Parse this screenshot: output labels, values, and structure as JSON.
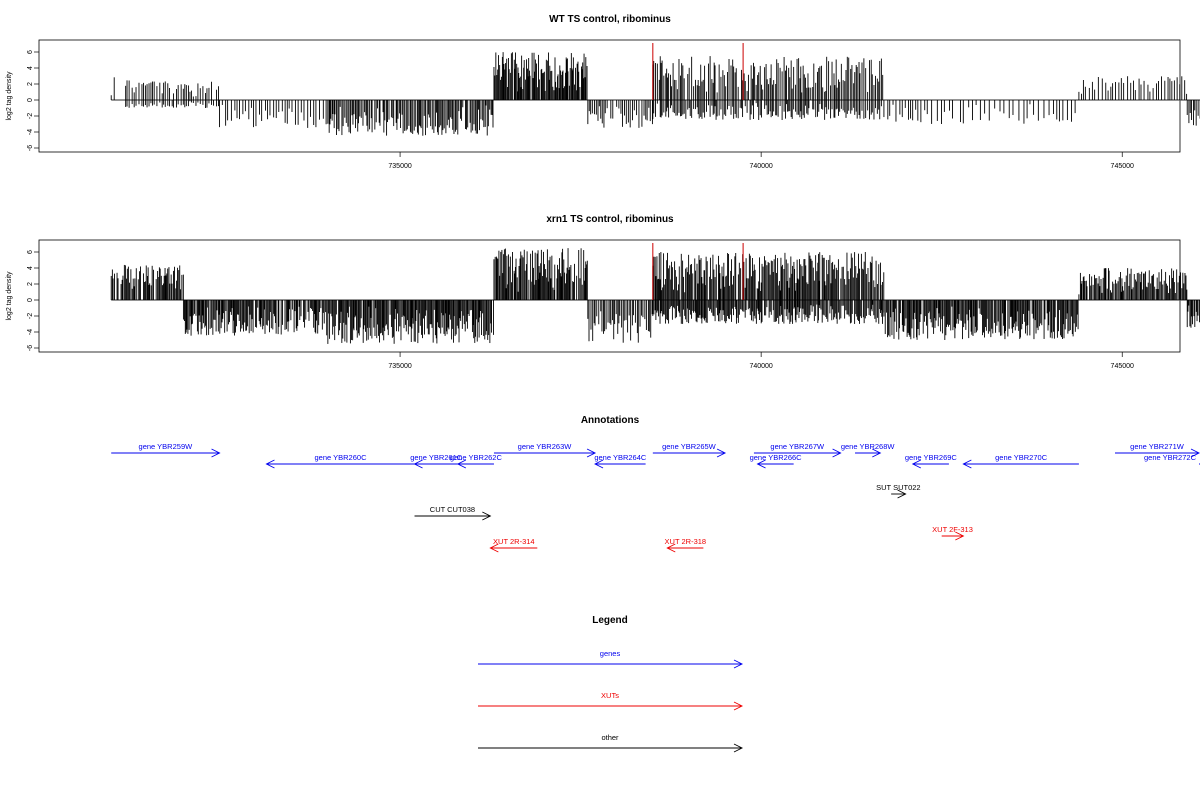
{
  "chart_data": [
    {
      "type": "bar",
      "title": "WT TS control, ribominus",
      "ylabel": "log2 tag density",
      "xlabel": "",
      "xlim": [
        730000,
        745800
      ],
      "ylim": [
        -6,
        7
      ],
      "yticks": [
        6,
        4,
        2,
        0,
        -2,
        -4,
        -6
      ],
      "xticks": [
        735000,
        740000,
        745000
      ],
      "xtick_labels": [
        "735000",
        "740000",
        "745000"
      ],
      "track_x": [
        731000,
        746500
      ],
      "colors": {
        "bars": "#000000",
        "markers": "#cc0000",
        "baseline": "#555555"
      },
      "markers_x": [
        738500,
        739750
      ],
      "segments": [
        {
          "x": [
            731000,
            731050
          ],
          "y": [
            3,
            3
          ],
          "density": 0.3
        },
        {
          "x": [
            731200,
            732500
          ],
          "y": [
            2.5,
            -1
          ],
          "density": 0.4
        },
        {
          "x": [
            732500,
            734000
          ],
          "y": [
            0,
            -3.5
          ],
          "density": 0.3
        },
        {
          "x": [
            734000,
            736300
          ],
          "y": [
            0,
            -4.5
          ],
          "density": 0.7
        },
        {
          "x": [
            736300,
            737600
          ],
          "y": [
            6,
            0
          ],
          "density": 1.0
        },
        {
          "x": [
            737600,
            738500
          ],
          "y": [
            0,
            -3.5
          ],
          "density": 0.4
        },
        {
          "x": [
            738500,
            741700
          ],
          "y": [
            5.5,
            -2.5
          ],
          "density": 0.6
        },
        {
          "x": [
            741700,
            742300
          ],
          "y": [
            0,
            -3
          ],
          "density": 0.3
        },
        {
          "x": [
            742300,
            744400
          ],
          "y": [
            0,
            -3
          ],
          "density": 0.2
        },
        {
          "x": [
            744400,
            745900
          ],
          "y": [
            3,
            0
          ],
          "density": 0.3
        },
        {
          "x": [
            745900,
            746500
          ],
          "y": [
            0,
            -3.5
          ],
          "density": 0.6
        }
      ]
    },
    {
      "type": "bar",
      "title": "xrn1 TS control, ribominus",
      "ylabel": "log2 tag density",
      "xlabel": "",
      "xlim": [
        730000,
        745800
      ],
      "ylim": [
        -6,
        7
      ],
      "yticks": [
        6,
        4,
        2,
        0,
        -2,
        -4,
        -6
      ],
      "xticks": [
        735000,
        740000,
        745000
      ],
      "xtick_labels": [
        "735000",
        "740000",
        "745000"
      ],
      "track_x": [
        731000,
        746500
      ],
      "colors": {
        "bars": "#000000",
        "markers": "#cc0000",
        "baseline": "#555555"
      },
      "markers_x": [
        738500,
        739750
      ],
      "segments": [
        {
          "x": [
            731000,
            732000
          ],
          "y": [
            4.5,
            0
          ],
          "density": 0.8
        },
        {
          "x": [
            732000,
            734000
          ],
          "y": [
            0,
            -4.5
          ],
          "density": 0.8
        },
        {
          "x": [
            734000,
            736300
          ],
          "y": [
            0,
            -5.5
          ],
          "density": 1.0
        },
        {
          "x": [
            736300,
            737600
          ],
          "y": [
            6.5,
            0
          ],
          "density": 1.0
        },
        {
          "x": [
            737600,
            738500
          ],
          "y": [
            0,
            -5.5
          ],
          "density": 0.6
        },
        {
          "x": [
            738500,
            741700
          ],
          "y": [
            6,
            -3
          ],
          "density": 0.9
        },
        {
          "x": [
            741700,
            744400
          ],
          "y": [
            0,
            -5
          ],
          "density": 0.9
        },
        {
          "x": [
            744400,
            745900
          ],
          "y": [
            4,
            0
          ],
          "density": 0.8
        },
        {
          "x": [
            745900,
            746500
          ],
          "y": [
            0,
            -4
          ],
          "density": 0.8
        }
      ]
    }
  ],
  "annotations": {
    "title": "Annotations",
    "features": [
      {
        "label": "gene YBR259W",
        "kind": "gene",
        "start": 731000,
        "end": 732500,
        "strand": "+",
        "row": 0
      },
      {
        "label": "gene YBR260C",
        "kind": "gene",
        "start": 733150,
        "end": 735200,
        "strand": "-",
        "row": 1
      },
      {
        "label": "gene YBR261C",
        "kind": "gene",
        "start": 735200,
        "end": 735800,
        "strand": "-",
        "row": 1
      },
      {
        "label": "gene YBR262C",
        "kind": "gene",
        "start": 735800,
        "end": 736300,
        "strand": "-",
        "row": 1
      },
      {
        "label": "gene YBR263W",
        "kind": "gene",
        "start": 736300,
        "end": 737700,
        "strand": "+",
        "row": 0
      },
      {
        "label": "gene YBR264C",
        "kind": "gene",
        "start": 737700,
        "end": 738400,
        "strand": "-",
        "row": 1
      },
      {
        "label": "gene YBR265W",
        "kind": "gene",
        "start": 738500,
        "end": 739500,
        "strand": "+",
        "row": 0
      },
      {
        "label": "gene YBR266C",
        "kind": "gene",
        "start": 739950,
        "end": 740450,
        "strand": "-",
        "row": 1
      },
      {
        "label": "gene YBR267W",
        "kind": "gene",
        "start": 739900,
        "end": 741100,
        "strand": "+",
        "row": 0
      },
      {
        "label": "gene YBR268W",
        "kind": "gene",
        "start": 741300,
        "end": 741650,
        "strand": "+",
        "row": 0
      },
      {
        "label": "gene YBR269C",
        "kind": "gene",
        "start": 742100,
        "end": 742600,
        "strand": "-",
        "row": 1
      },
      {
        "label": "gene YBR270C",
        "kind": "gene",
        "start": 742800,
        "end": 744400,
        "strand": "-",
        "row": 1
      },
      {
        "label": "gene YBR271W",
        "kind": "gene",
        "start": 744900,
        "end": 746200,
        "strand": "+",
        "row": 0
      },
      {
        "label": "gene YBR272C",
        "kind": "gene",
        "start": 746400,
        "end": 747000,
        "strand": "-",
        "row": 1
      },
      {
        "label": "CUT CUT038",
        "kind": "other",
        "start": 735200,
        "end": 736250,
        "strand": "+",
        "row": 3
      },
      {
        "label": "SUT SUT022",
        "kind": "other",
        "start": 741800,
        "end": 742000,
        "strand": "+",
        "row": 2
      },
      {
        "label": "XUT 2R-314",
        "kind": "xut",
        "start": 736250,
        "end": 736900,
        "strand": "-",
        "row": 4
      },
      {
        "label": "XUT 2R-318",
        "kind": "xut",
        "start": 738700,
        "end": 739200,
        "strand": "-",
        "row": 4
      },
      {
        "label": "XUT 2F-313",
        "kind": "xut",
        "start": 742500,
        "end": 742800,
        "strand": "+",
        "row": 5
      }
    ]
  },
  "legend": {
    "title": "Legend",
    "items": [
      {
        "label": "genes",
        "color": "#0000ee"
      },
      {
        "label": "XUTs",
        "color": "#ee0000"
      },
      {
        "label": "other",
        "color": "#000000"
      }
    ]
  },
  "colors": {
    "gene": "#0000ee",
    "xut": "#ee0000",
    "other": "#000000"
  }
}
